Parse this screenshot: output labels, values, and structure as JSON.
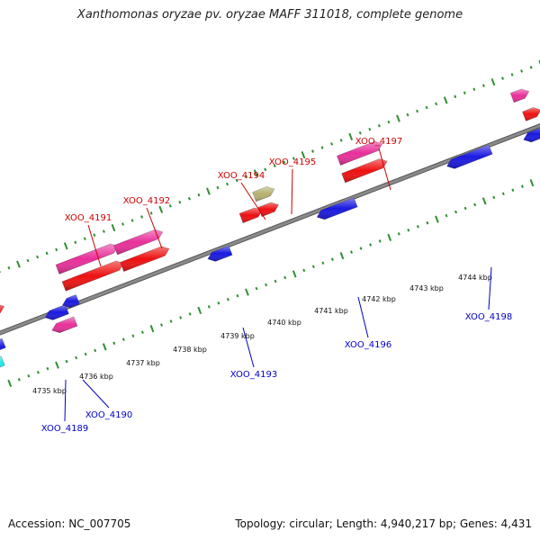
{
  "title": "Xanthomonas oryzae pv. oryzae MAFF 311018, complete genome",
  "footer": {
    "accession": "Accession: NC_007705",
    "genome_info": "Topology: circular; Length: 4,940,217 bp; Genes: 4,431"
  },
  "colors": {
    "backbone": "#8a8a8a",
    "tick": "#2f8f2f",
    "forward_label": "#cc0000",
    "reverse_label": "#0000cc",
    "scale_text": "#111111",
    "pink": "#e8309a",
    "red": "#ee1111",
    "blue": "#1a1ae0",
    "orange": "#f39a1a",
    "khaki": "#b5b070",
    "cyan": "#1ee8e8"
  },
  "scale": {
    "unit": "kbp",
    "labels": [
      "4735 kbp",
      "4736 kbp",
      "4737 kbp",
      "4738 kbp",
      "4739 kbp",
      "4740 kbp",
      "4741 kbp",
      "4742 kbp",
      "4743 kbp",
      "4744 kbp"
    ]
  },
  "forward_genes": [
    "XOO_4191",
    "XOO_4192",
    "XOO_4194",
    "XOO_4195",
    "XOO_4197"
  ],
  "reverse_genes": [
    "XOO_4189",
    "XOO_4190",
    "XOO_4193",
    "XOO_4196",
    "XOO_4198"
  ]
}
